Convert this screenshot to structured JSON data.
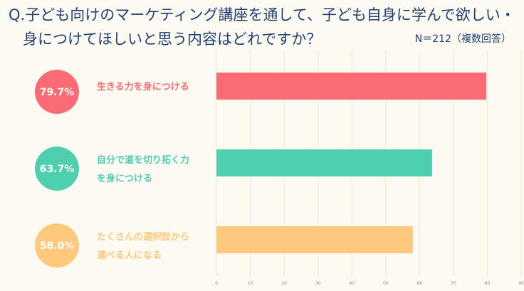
{
  "header": {
    "title_line1": "Q.子ども向けのマーケティング講座を通して、子ども自身に学んで欲しい・",
    "title_line2": "身につけてほしいと思う内容はどれですか？",
    "sample_note": "N＝212（複数回答）"
  },
  "chart_data": {
    "type": "bar",
    "orientation": "horizontal",
    "categories": [
      [
        "生きる力を身につける"
      ],
      [
        "自分で道を切り拓く力",
        "を身につける"
      ],
      [
        "たくさんの選択肢から",
        "選べる人になる"
      ]
    ],
    "values": [
      79.7,
      63.7,
      58.0
    ],
    "value_labels": [
      "79.7%",
      "63.7%",
      "58.0%"
    ],
    "colors": [
      "#fb6b73",
      "#4ecfb0",
      "#fec97c"
    ],
    "xlim": [
      0,
      90
    ],
    "xticks": [
      0,
      10,
      20,
      30,
      40,
      50,
      60,
      70,
      80,
      90
    ],
    "grid": true,
    "legend": "none"
  }
}
